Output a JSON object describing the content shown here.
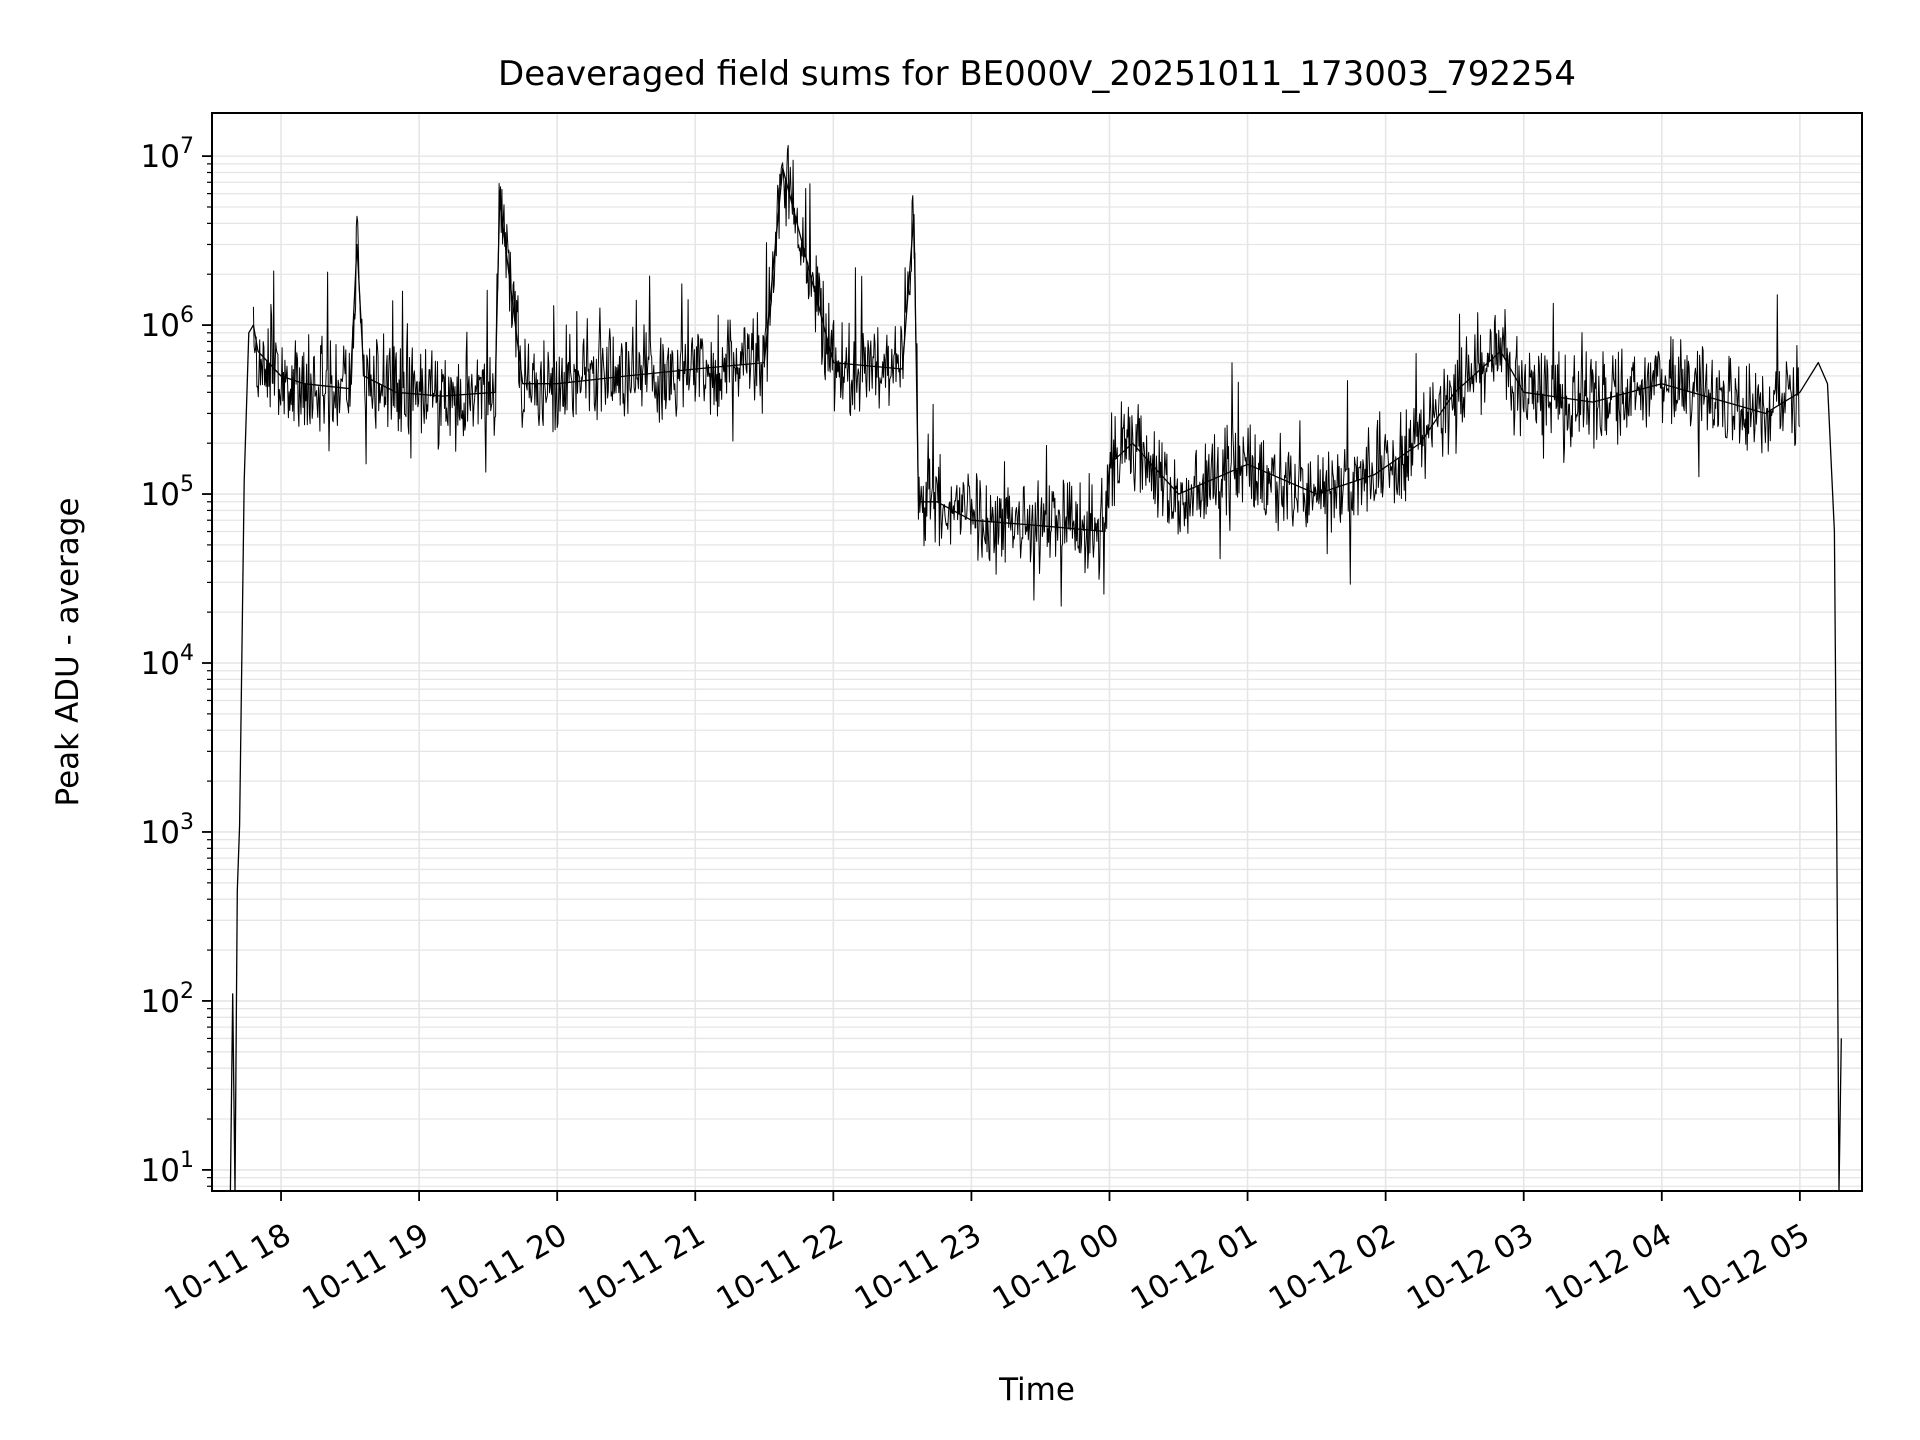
{
  "chart_data": {
    "type": "line",
    "title": "Deaveraged field sums for BE000V_20251011_173003_792254",
    "xlabel": "Time",
    "ylabel": "Peak ADU - average",
    "yscale": "log",
    "ylim": [
      7.5,
      18000000
    ],
    "xlim": [
      "2025-10-11 17:30",
      "2025-10-12 05:27"
    ],
    "grid": true,
    "legend": "none",
    "line_color": "#000000",
    "grid_color": "#e6e6e6",
    "x_ticks": [
      {
        "label": "10-11 18",
        "t": "2025-10-11 18:00"
      },
      {
        "label": "10-11 19",
        "t": "2025-10-11 19:00"
      },
      {
        "label": "10-11 20",
        "t": "2025-10-11 20:00"
      },
      {
        "label": "10-11 21",
        "t": "2025-10-11 21:00"
      },
      {
        "label": "10-11 22",
        "t": "2025-10-11 22:00"
      },
      {
        "label": "10-11 23",
        "t": "2025-10-11 23:00"
      },
      {
        "label": "10-12 00",
        "t": "2025-10-12 00:00"
      },
      {
        "label": "10-12 01",
        "t": "2025-10-12 01:00"
      },
      {
        "label": "10-12 02",
        "t": "2025-10-12 02:00"
      },
      {
        "label": "10-12 03",
        "t": "2025-10-12 03:00"
      },
      {
        "label": "10-12 04",
        "t": "2025-10-12 04:00"
      },
      {
        "label": "10-12 05",
        "t": "2025-10-12 05:00"
      }
    ],
    "y_ticks": [
      {
        "value": 10,
        "label_base": "10",
        "label_exp": "1"
      },
      {
        "value": 100,
        "label_base": "10",
        "label_exp": "2"
      },
      {
        "value": 1000,
        "label_base": "10",
        "label_exp": "3"
      },
      {
        "value": 10000,
        "label_base": "10",
        "label_exp": "4"
      },
      {
        "value": 100000,
        "label_base": "10",
        "label_exp": "5"
      },
      {
        "value": 1000000,
        "label_base": "10",
        "label_exp": "6"
      },
      {
        "value": 10000000,
        "label_base": "10",
        "label_exp": "7"
      }
    ],
    "x": [
      "2025-10-11 17:38",
      "2025-10-11 17:39",
      "2025-10-11 17:40",
      "2025-10-11 17:41",
      "2025-10-11 17:42",
      "2025-10-11 17:44",
      "2025-10-11 17:46",
      "2025-10-11 17:48",
      "2025-10-11 17:50",
      "2025-10-11 18:00",
      "2025-10-11 18:10",
      "2025-10-11 18:30",
      "2025-10-11 18:33",
      "2025-10-11 18:36",
      "2025-10-11 18:50",
      "2025-10-11 19:10",
      "2025-10-11 19:33",
      "2025-10-11 19:35",
      "2025-10-11 19:45",
      "2025-10-11 20:00",
      "2025-10-11 20:30",
      "2025-10-11 21:00",
      "2025-10-11 21:30",
      "2025-10-11 21:38",
      "2025-10-11 22:00",
      "2025-10-11 22:30",
      "2025-10-11 22:35",
      "2025-10-11 22:37",
      "2025-10-11 22:45",
      "2025-10-11 23:00",
      "2025-10-11 23:30",
      "2025-10-11 23:58",
      "2025-10-12 00:00",
      "2025-10-12 00:10",
      "2025-10-12 00:30",
      "2025-10-12 01:00",
      "2025-10-12 01:30",
      "2025-10-12 01:55",
      "2025-10-12 02:15",
      "2025-10-12 02:30",
      "2025-10-12 02:50",
      "2025-10-12 03:00",
      "2025-10-12 03:30",
      "2025-10-12 04:00",
      "2025-10-12 04:45",
      "2025-10-12 05:00",
      "2025-10-12 05:08",
      "2025-10-12 05:12",
      "2025-10-12 05:15",
      "2025-10-12 05:16",
      "2025-10-12 05:17",
      "2025-10-12 05:18"
    ],
    "series": [
      {
        "values": [
          7.5,
          110,
          7.5,
          450,
          1100,
          120000,
          900000,
          1000000,
          700000,
          500000,
          450000,
          420000,
          3000000,
          500000,
          400000,
          380000,
          400000,
          5500000,
          450000,
          450000,
          500000,
          550000,
          600000,
          8500000,
          600000,
          550000,
          4500000,
          90000,
          90000,
          70000,
          65000,
          60000,
          150000,
          200000,
          100000,
          150000,
          100000,
          130000,
          200000,
          400000,
          700000,
          400000,
          350000,
          450000,
          300000,
          400000,
          600000,
          450000,
          60000,
          1100,
          7.5,
          60
        ]
      }
    ]
  }
}
